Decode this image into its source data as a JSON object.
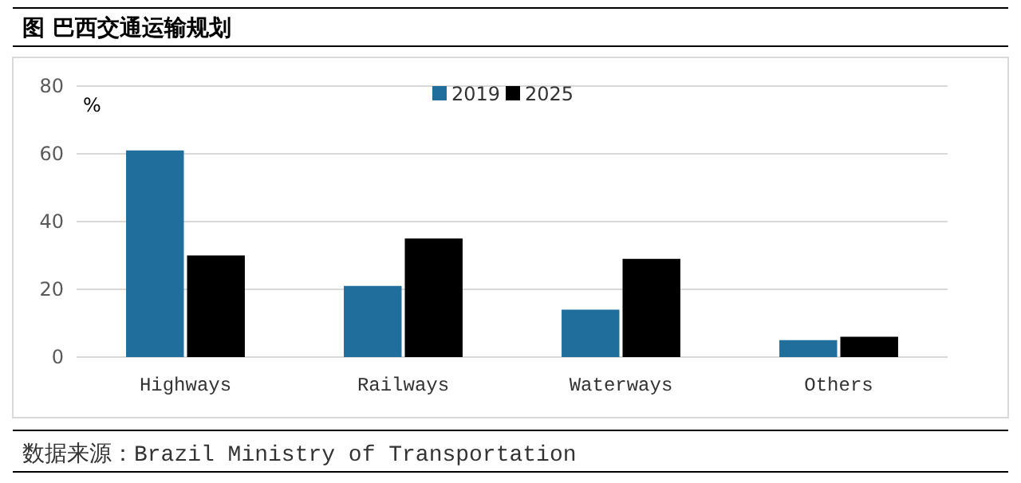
{
  "chart_data": {
    "type": "bar",
    "title": "图 巴西交通运输规划",
    "ylabel": "%",
    "categories": [
      "Highways",
      "Railways",
      "Waterways",
      "Others"
    ],
    "series": [
      {
        "name": "2019",
        "color": "#1f6e9c",
        "values": [
          61,
          21,
          14,
          5
        ]
      },
      {
        "name": "2025",
        "color": "#000000",
        "values": [
          30,
          35,
          29,
          6
        ]
      }
    ],
    "ylim": [
      0,
      80
    ],
    "yticks": [
      0,
      20,
      40,
      60,
      80
    ],
    "grid": "y",
    "legend": "top",
    "annotations": [
      "数据来源：Brazil Ministry of Transportation"
    ]
  }
}
